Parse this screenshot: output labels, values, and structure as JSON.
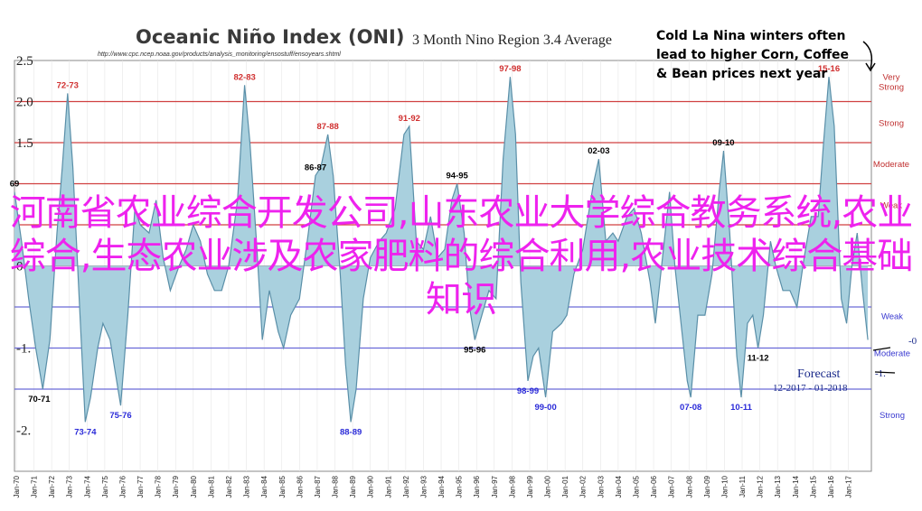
{
  "chart_data": {
    "type": "area",
    "title": "Oceanic Niño Index (ONI)",
    "subtitle": "3 Month Nino Region 3.4 Average",
    "source_url": "http://www.cpc.ncep.noaa.gov/products/analysis_monitoring/ensostuff/ensoyears.shtml",
    "ylim": [
      -2.5,
      2.5
    ],
    "yticks": [
      "2.5",
      "2.0",
      "1.5",
      "",
      "",
      "0",
      "",
      "-1.",
      "",
      "-2."
    ],
    "x_tick_labels": [
      "Jan-70",
      "Jan-71",
      "Jan-72",
      "Jan-73",
      "Jan-74",
      "Jan-75",
      "Jan-76",
      "Jan-77",
      "Jan-78",
      "Jan-79",
      "Jan-80",
      "Jan-81",
      "Jan-82",
      "Jan-83",
      "Jan-84",
      "Jan-85",
      "Jan-86",
      "Jan-87",
      "Jan-88",
      "Jan-89",
      "Jan-90",
      "Jan-91",
      "Jan-92",
      "Jan-93",
      "Jan-94",
      "Jan-95",
      "Jan-96",
      "Jan-97",
      "Jan-98",
      "Jan-99",
      "Jan-00",
      "Jan-01",
      "Jan-02",
      "Jan-03",
      "Jan-04",
      "Jan-05",
      "Jan-06",
      "Jan-07",
      "Jan-08",
      "Jan-09",
      "Jan-10",
      "Jan-11",
      "Jan-12",
      "Jan-13",
      "Jan-14",
      "Jan-15",
      "Jan-16",
      "Jan-17"
    ],
    "x_range": [
      1969.9,
      2018.3
    ],
    "series": [
      {
        "fill_color": "#a9d0de",
        "line_color": "#5a8fa8",
        "points": [
          [
            1969.9,
            0.9
          ],
          [
            1970.3,
            0.3
          ],
          [
            1970.7,
            -0.4
          ],
          [
            1971.1,
            -1.0
          ],
          [
            1971.5,
            -1.5
          ],
          [
            1971.9,
            -0.9
          ],
          [
            1972.3,
            0.4
          ],
          [
            1972.6,
            1.2
          ],
          [
            1972.9,
            2.1
          ],
          [
            1973.2,
            1.2
          ],
          [
            1973.6,
            -0.6
          ],
          [
            1973.9,
            -1.9
          ],
          [
            1974.2,
            -1.6
          ],
          [
            1974.6,
            -1.0
          ],
          [
            1974.9,
            -0.7
          ],
          [
            1975.3,
            -0.9
          ],
          [
            1975.6,
            -1.3
          ],
          [
            1975.9,
            -1.7
          ],
          [
            1976.3,
            -0.6
          ],
          [
            1976.7,
            0.7
          ],
          [
            1977.0,
            0.5
          ],
          [
            1977.5,
            0.4
          ],
          [
            1977.9,
            0.8
          ],
          [
            1978.3,
            0.1
          ],
          [
            1978.7,
            -0.3
          ],
          [
            1979.2,
            0.0
          ],
          [
            1979.6,
            0.2
          ],
          [
            1980.0,
            0.5
          ],
          [
            1980.4,
            0.3
          ],
          [
            1980.8,
            -0.1
          ],
          [
            1981.2,
            -0.3
          ],
          [
            1981.6,
            -0.3
          ],
          [
            1982.0,
            0.0
          ],
          [
            1982.5,
            0.8
          ],
          [
            1982.9,
            2.2
          ],
          [
            1983.2,
            1.5
          ],
          [
            1983.6,
            0.2
          ],
          [
            1983.9,
            -0.9
          ],
          [
            1984.3,
            -0.3
          ],
          [
            1984.8,
            -0.8
          ],
          [
            1985.1,
            -1.0
          ],
          [
            1985.5,
            -0.6
          ],
          [
            1986.0,
            -0.4
          ],
          [
            1986.5,
            0.4
          ],
          [
            1986.9,
            1.1
          ],
          [
            1987.2,
            1.2
          ],
          [
            1987.6,
            1.6
          ],
          [
            1987.9,
            1.1
          ],
          [
            1988.3,
            -0.1
          ],
          [
            1988.6,
            -1.2
          ],
          [
            1988.9,
            -1.9
          ],
          [
            1989.2,
            -1.5
          ],
          [
            1989.6,
            -0.4
          ],
          [
            1990.0,
            0.1
          ],
          [
            1990.5,
            0.3
          ],
          [
            1990.9,
            0.4
          ],
          [
            1991.4,
            0.7
          ],
          [
            1991.9,
            1.6
          ],
          [
            1992.2,
            1.7
          ],
          [
            1992.6,
            0.3
          ],
          [
            1993.0,
            0.2
          ],
          [
            1993.4,
            0.6
          ],
          [
            1993.8,
            0.1
          ],
          [
            1994.2,
            0.2
          ],
          [
            1994.6,
            0.8
          ],
          [
            1994.9,
            1.0
          ],
          [
            1995.3,
            0.4
          ],
          [
            1995.6,
            -0.5
          ],
          [
            1995.9,
            -0.9
          ],
          [
            1996.3,
            -0.6
          ],
          [
            1996.7,
            -0.3
          ],
          [
            1997.1,
            -0.4
          ],
          [
            1997.5,
            1.3
          ],
          [
            1997.9,
            2.3
          ],
          [
            1998.2,
            1.6
          ],
          [
            1998.5,
            -0.2
          ],
          [
            1998.9,
            -1.4
          ],
          [
            1999.2,
            -1.1
          ],
          [
            1999.5,
            -1.0
          ],
          [
            1999.9,
            -1.6
          ],
          [
            2000.3,
            -0.8
          ],
          [
            2000.8,
            -0.7
          ],
          [
            2001.1,
            -0.6
          ],
          [
            2001.5,
            -0.1
          ],
          [
            2002.0,
            0.2
          ],
          [
            2002.6,
            1.0
          ],
          [
            2002.9,
            1.3
          ],
          [
            2003.3,
            0.3
          ],
          [
            2003.7,
            0.4
          ],
          [
            2004.0,
            0.3
          ],
          [
            2004.5,
            0.6
          ],
          [
            2004.9,
            0.7
          ],
          [
            2005.3,
            0.4
          ],
          [
            2005.8,
            -0.2
          ],
          [
            2006.1,
            -0.7
          ],
          [
            2006.5,
            0.1
          ],
          [
            2006.9,
            0.9
          ],
          [
            2007.2,
            0.0
          ],
          [
            2007.6,
            -0.8
          ],
          [
            2007.9,
            -1.4
          ],
          [
            2008.1,
            -1.6
          ],
          [
            2008.5,
            -0.6
          ],
          [
            2008.9,
            -0.6
          ],
          [
            2009.3,
            -0.1
          ],
          [
            2009.7,
            0.9
          ],
          [
            2009.95,
            1.4
          ],
          [
            2010.3,
            0.4
          ],
          [
            2010.7,
            -1.1
          ],
          [
            2010.95,
            -1.6
          ],
          [
            2011.3,
            -0.7
          ],
          [
            2011.6,
            -0.6
          ],
          [
            2011.9,
            -1.0
          ],
          [
            2012.2,
            -0.6
          ],
          [
            2012.6,
            0.3
          ],
          [
            2012.9,
            0.0
          ],
          [
            2013.3,
            -0.3
          ],
          [
            2013.7,
            -0.3
          ],
          [
            2014.1,
            -0.5
          ],
          [
            2014.5,
            0.1
          ],
          [
            2014.9,
            0.6
          ],
          [
            2015.3,
            0.6
          ],
          [
            2015.6,
            1.5
          ],
          [
            2015.9,
            2.3
          ],
          [
            2016.2,
            1.7
          ],
          [
            2016.6,
            -0.4
          ],
          [
            2016.9,
            -0.7
          ],
          [
            2017.2,
            0.0
          ],
          [
            2017.5,
            0.4
          ],
          [
            2017.8,
            -0.3
          ],
          [
            2018.1,
            -0.9
          ]
        ]
      }
    ],
    "thresholds": [
      {
        "value": 2.0,
        "color": "#d04040",
        "label": "Very Strong"
      },
      {
        "value": 1.5,
        "color": "#d04040",
        "label": "Strong"
      },
      {
        "value": 1.0,
        "color": "#d04040",
        "label": "Moderate"
      },
      {
        "value": 0.5,
        "color": "#d04040",
        "label": "Weak"
      },
      {
        "value": -0.5,
        "color": "#6a6ad8",
        "label": "Weak"
      },
      {
        "value": -1.0,
        "color": "#6a6ad8",
        "label": "Moderate"
      },
      {
        "value": -1.5,
        "color": "#6a6ad8",
        "label": "Strong"
      }
    ],
    "peak_labels": [
      {
        "text": "72-73",
        "x": 1972.9,
        "y": 2.1,
        "color": "#d03030",
        "pos": "above"
      },
      {
        "text": "82-83",
        "x": 1982.9,
        "y": 2.2,
        "color": "#d03030",
        "pos": "above"
      },
      {
        "text": "87-88",
        "x": 1987.6,
        "y": 1.6,
        "color": "#d03030",
        "pos": "above"
      },
      {
        "text": "91-92",
        "x": 1992.2,
        "y": 1.7,
        "color": "#d03030",
        "pos": "above"
      },
      {
        "text": "97-98",
        "x": 1997.9,
        "y": 2.3,
        "color": "#d03030",
        "pos": "above"
      },
      {
        "text": "15-16",
        "x": 2015.9,
        "y": 2.3,
        "color": "#d03030",
        "pos": "above"
      },
      {
        "text": "86-87",
        "x": 1986.9,
        "y": 1.1,
        "color": "#000000",
        "pos": "above"
      },
      {
        "text": "94-95",
        "x": 1994.9,
        "y": 1.0,
        "color": "#000000",
        "pos": "above"
      },
      {
        "text": "02-03",
        "x": 2002.9,
        "y": 1.3,
        "color": "#000000",
        "pos": "above"
      },
      {
        "text": "09-10",
        "x": 2009.95,
        "y": 1.4,
        "color": "#000000",
        "pos": "above"
      },
      {
        "text": "69",
        "x": 1969.9,
        "y": 0.9,
        "color": "#000000",
        "pos": "above"
      },
      {
        "text": "70-71",
        "x": 1971.3,
        "y": -1.5,
        "color": "#000000",
        "pos": "below"
      },
      {
        "text": "95-96",
        "x": 1995.9,
        "y": -0.9,
        "color": "#000000",
        "pos": "below"
      },
      {
        "text": "11-12",
        "x": 2011.9,
        "y": -1.0,
        "color": "#000000",
        "pos": "below"
      },
      {
        "text": "73-74",
        "x": 1973.9,
        "y": -1.9,
        "color": "#2a2ad8",
        "pos": "below"
      },
      {
        "text": "75-76",
        "x": 1975.9,
        "y": -1.7,
        "color": "#2a2ad8",
        "pos": "below"
      },
      {
        "text": "88-89",
        "x": 1988.9,
        "y": -1.9,
        "color": "#2a2ad8",
        "pos": "below"
      },
      {
        "text": "98-99",
        "x": 1998.9,
        "y": -1.4,
        "color": "#2a2ad8",
        "pos": "below"
      },
      {
        "text": "99-00",
        "x": 1999.9,
        "y": -1.6,
        "color": "#2a2ad8",
        "pos": "below"
      },
      {
        "text": "07-08",
        "x": 2008.1,
        "y": -1.6,
        "color": "#2a2ad8",
        "pos": "below"
      },
      {
        "text": "10-11",
        "x": 2010.95,
        "y": -1.6,
        "color": "#2a2ad8",
        "pos": "below"
      }
    ],
    "annotation_lines": [
      "Cold La Nina winters often",
      "lead to higher Corn, Coffee",
      "& Bean prices next year"
    ],
    "forecast": {
      "title": "Forecast",
      "range": "12-2017 - 01-2018"
    },
    "partial_labels": {
      "forecast_value": "-1.",
      "weak_value": "-0"
    }
  },
  "overlay": {
    "text": "河南省农业综合开发公司,山东农业大学综合教务系统,农业综合,生态农业涉及农家肥料的综合利用,农业技术综合基础知识",
    "color": "#ee22ee"
  }
}
